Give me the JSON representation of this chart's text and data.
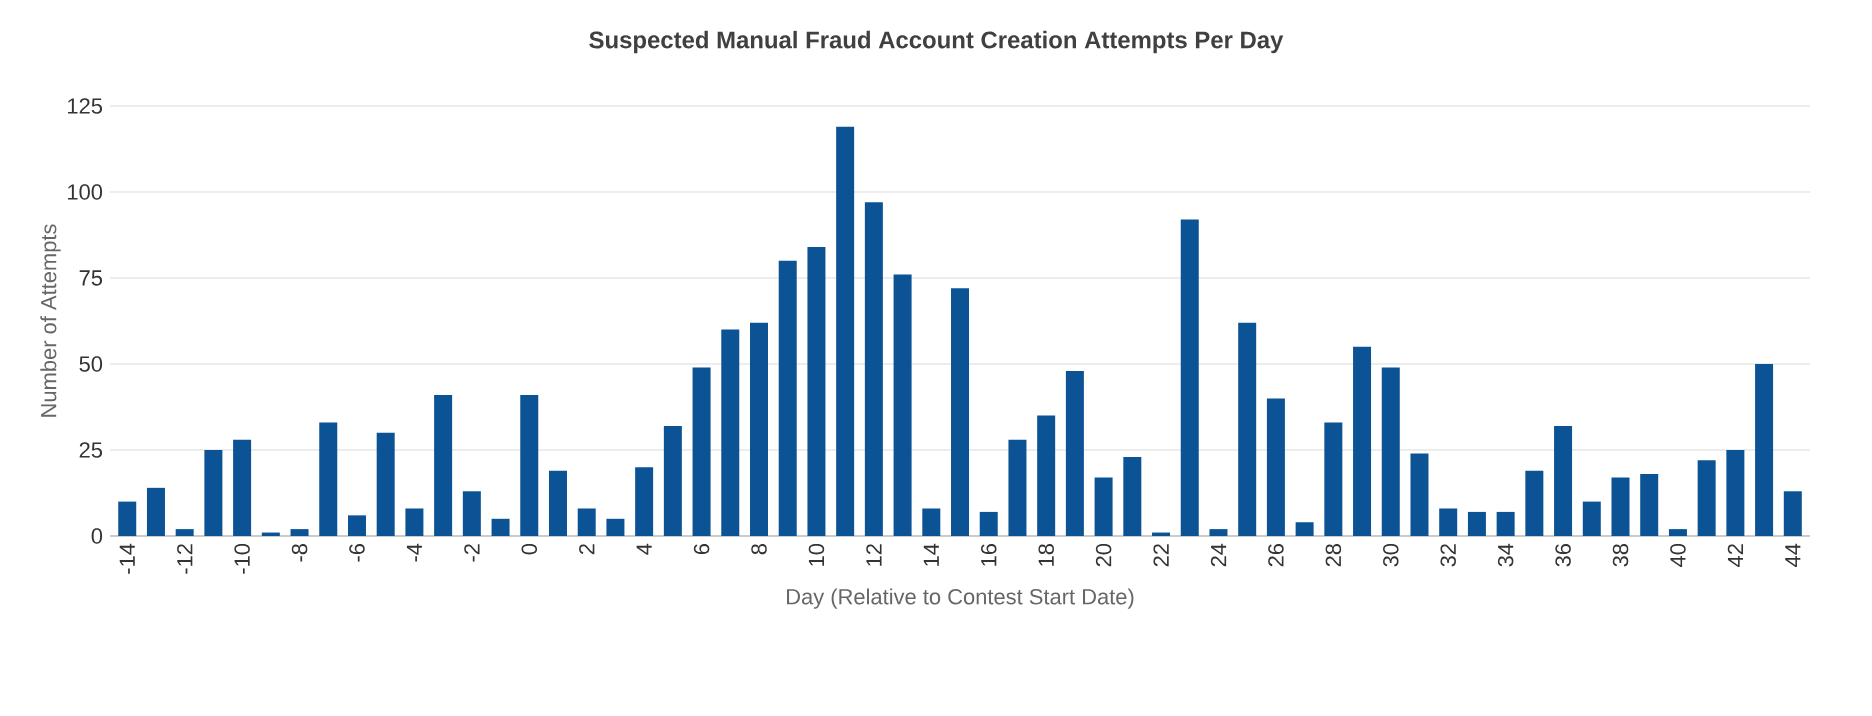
{
  "chart_data": {
    "type": "bar",
    "title": "Suspected Manual Fraud Account Creation Attempts Per Day",
    "xlabel": "Day (Relative to Contest Start Date)",
    "ylabel": "Number of Attempts",
    "categories": [
      "-14",
      null,
      "-12",
      null,
      "-10",
      null,
      "-8",
      null,
      "-6",
      null,
      "-4",
      null,
      "-2",
      null,
      "0",
      null,
      "2",
      null,
      "4",
      null,
      "6",
      null,
      "8",
      null,
      "10",
      null,
      "12",
      null,
      "14",
      null,
      "16",
      null,
      "18",
      null,
      "20",
      null,
      "22",
      null,
      "24",
      null,
      "26",
      null,
      "28",
      null,
      "30",
      null,
      "32",
      null,
      "34",
      null,
      "36",
      null,
      "38",
      null,
      "40",
      null,
      "42",
      null,
      "44"
    ],
    "values": [
      10,
      14,
      2,
      25,
      28,
      1,
      2,
      33,
      6,
      30,
      8,
      41,
      13,
      5,
      41,
      19,
      8,
      5,
      20,
      32,
      49,
      60,
      62,
      80,
      84,
      119,
      97,
      76,
      8,
      72,
      7,
      28,
      35,
      48,
      17,
      23,
      1,
      92,
      2,
      62,
      40,
      4,
      33,
      55,
      49,
      24,
      8,
      7,
      7,
      19,
      32,
      10,
      17,
      18,
      2,
      22,
      25,
      50,
      13
    ],
    "color": "#0b5394",
    "ylim": [
      0,
      125
    ],
    "yticks": [
      0,
      25,
      50,
      75,
      100,
      125
    ],
    "grid": "y"
  }
}
